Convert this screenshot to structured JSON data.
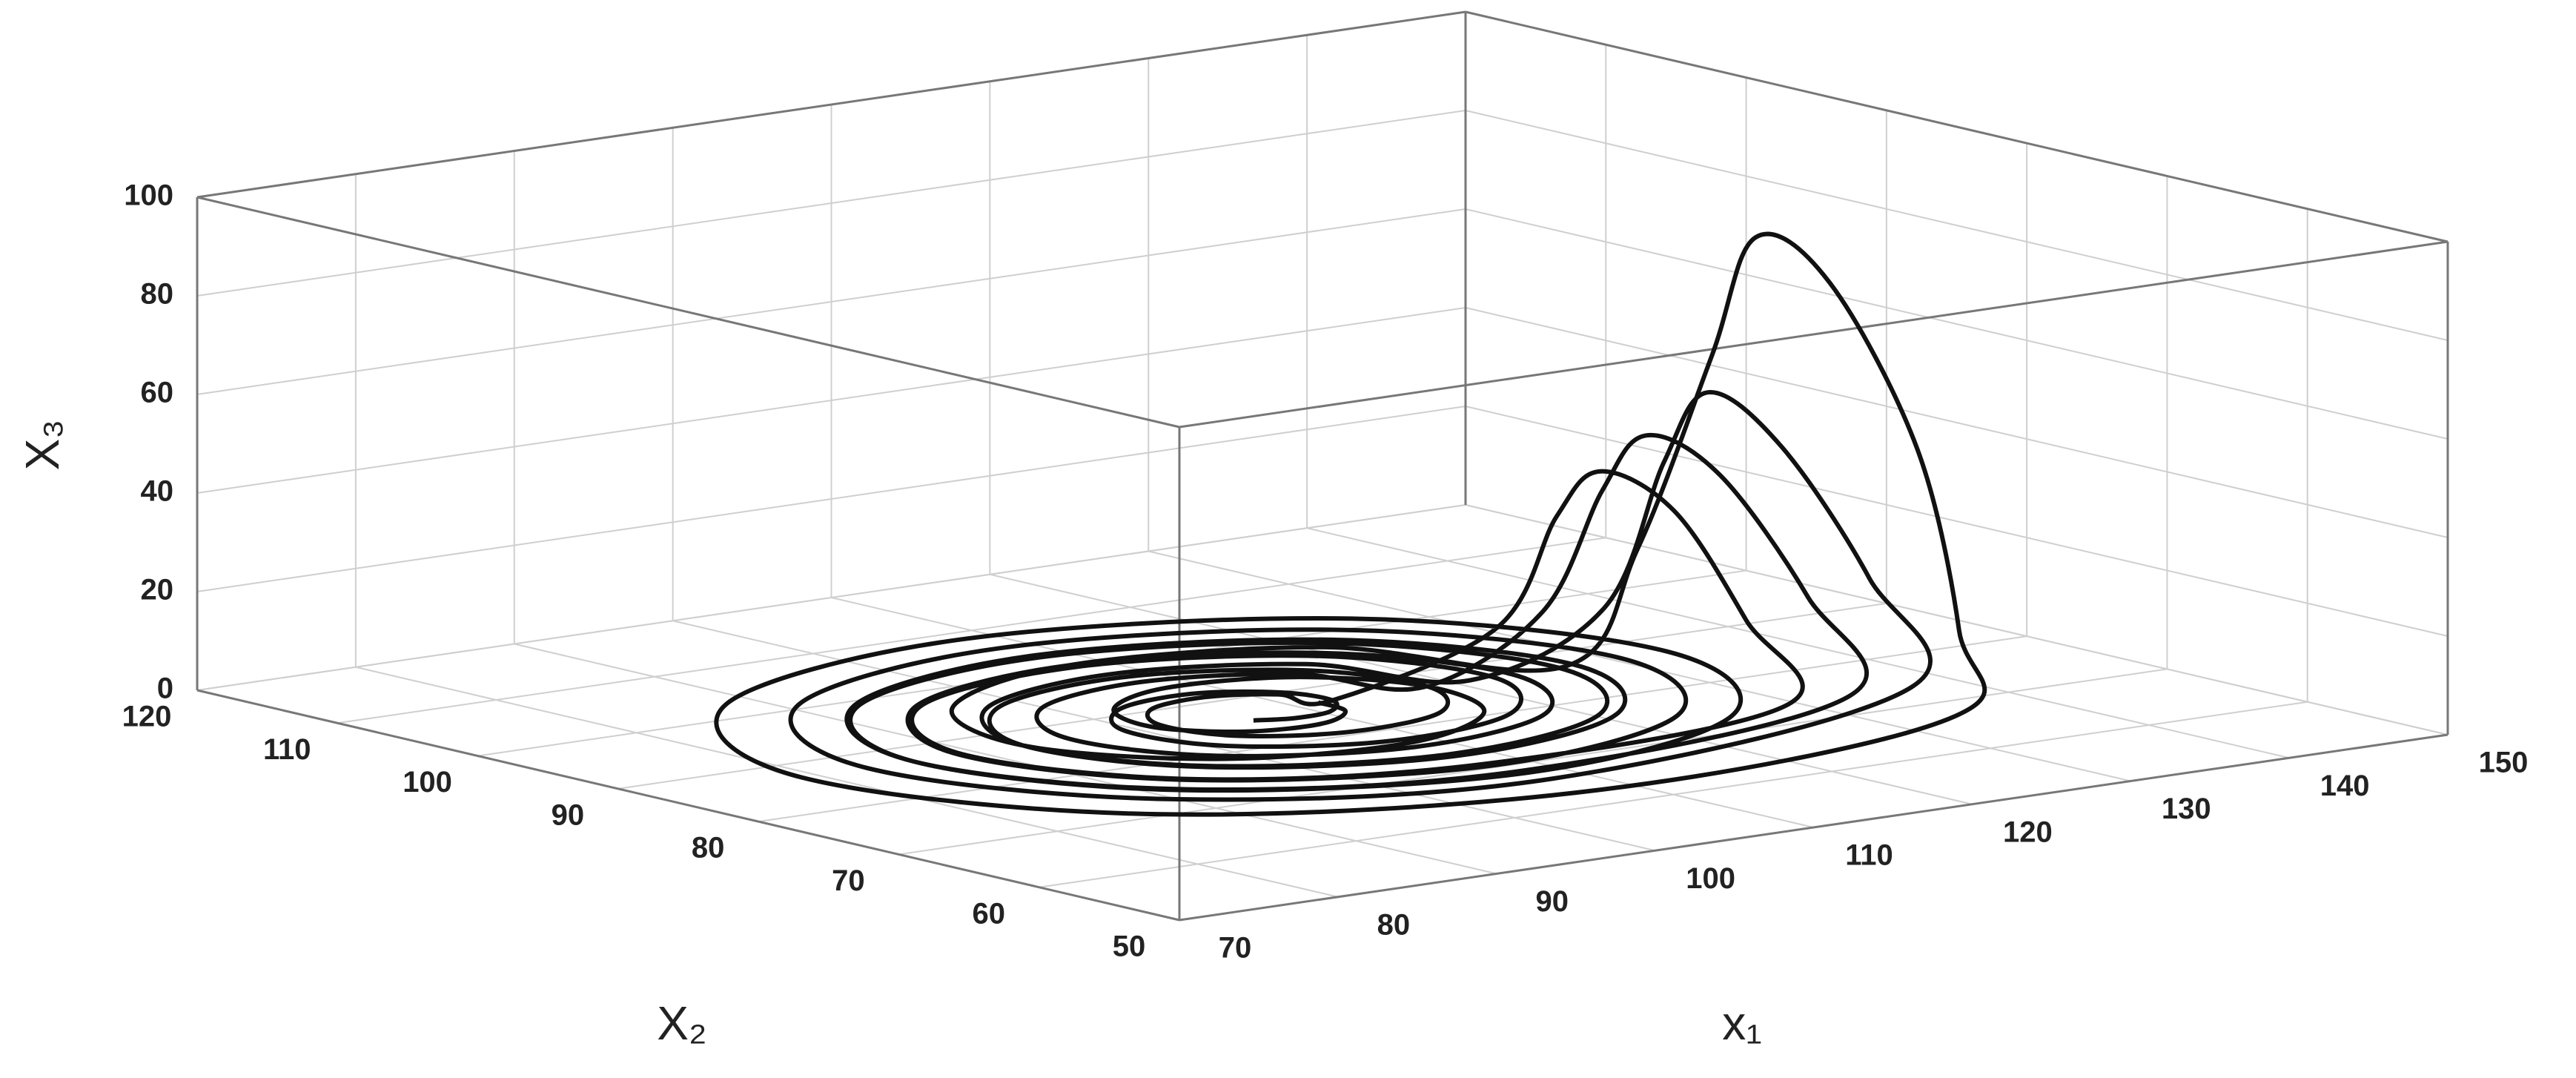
{
  "chart_data": {
    "type": "line3d",
    "xlabel": "x₁",
    "ylabel": "X₂",
    "zlabel": "X₃",
    "x": [
      111.5,
      111.1,
      108,
      103.7,
      101.0,
      102.5,
      108,
      114.8,
      118.4,
      116.2,
      108,
      98.2,
      92.9,
      96.5,
      108,
      120.9,
      127.1,
      129,
      131,
      132,
      134,
      136,
      136,
      134,
      108,
      86.9,
      79.0,
      88.1,
      108,
      126.7,
      133.5,
      125.4,
      108,
      91.8,
      86.0,
      93.0,
      108,
      121.7,
      126.6,
      120.5,
      108,
      96.7,
      92.9,
      97.8,
      108,
      117.4,
      121.1,
      126,
      128,
      129,
      131,
      133,
      133,
      108,
      90.0,
      83.1,
      90.8,
      108,
      124.4,
      130.6,
      123.4,
      108,
      93.9,
      88.9,
      95.1,
      108,
      119.7,
      123.7,
      118.5,
      108,
      98.8,
      95.8,
      99.8,
      108,
      115.4,
      118.2,
      123,
      125,
      126,
      128,
      130,
      130,
      108,
      92.0,
      86.0,
      92.8,
      108,
      122.4,
      127.7,
      121.1,
      108,
      96.5,
      92.9,
      98.2,
      108,
      116.2,
      118.4,
      114.6,
      108,
      102.9,
      101.6,
      103.9,
      108,
      111.3,
      112.4,
      121,
      123,
      124,
      126,
      127,
      127,
      108,
      94.1,
      89.1,
      95.3,
      108,
      119.1,
      122.5,
      117.2,
      108,
      100.8,
      99.3,
      102.7,
      108,
      111.7,
      112.4,
      110.5,
      108,
      106.0
    ],
    "y": [
      87,
      84.6,
      82.9,
      83.6,
      87,
      91.4,
      93.9,
      92.4,
      87,
      80.5,
      76.9,
      79.2,
      87,
      96.1,
      100.8,
      97.2,
      87,
      84,
      81,
      79,
      76,
      72,
      69,
      67,
      62.9,
      70.3,
      87,
      102.8,
      108.6,
      101.8,
      87,
      73.2,
      68.1,
      74.2,
      87,
      98.9,
      103.1,
      97.9,
      87,
      77.1,
      73.7,
      78.1,
      87,
      95.1,
      98.0,
      94.5,
      87,
      83,
      81,
      79,
      76,
      72,
      69,
      66.3,
      72.7,
      87,
      100.7,
      105.9,
      100.0,
      87,
      74.8,
      70.4,
      75.8,
      87,
      97.2,
      100.8,
      96.3,
      87,
      78.7,
      76.0,
      79.7,
      87,
      93.5,
      95.7,
      92.9,
      87,
      84,
      82,
      80,
      77,
      73,
      70,
      68.6,
      74.3,
      87,
      99.0,
      103.6,
      98.4,
      87,
      76.6,
      73.2,
      77.9,
      87,
      94.8,
      97.1,
      93.5,
      87,
      81.8,
      80.6,
      82.9,
      87,
      90.3,
      91.1,
      89.6,
      87,
      85,
      83,
      81,
      78,
      74,
      71,
      70.9,
      75.9,
      87,
      97.1,
      100.3,
      95.8,
      87,
      79.7,
      77.8,
      81.3,
      87,
      91.2,
      92.1,
      89.9,
      87,
      85.0,
      84.7,
      85.4
    ],
    "z": [
      0,
      0,
      0,
      0,
      0,
      0,
      0,
      0,
      0,
      0,
      0,
      0,
      0,
      0,
      0,
      0,
      0,
      25,
      65,
      90,
      82,
      50,
      15,
      0,
      0,
      0,
      0,
      0,
      0,
      0,
      0,
      0,
      0,
      0,
      0,
      0,
      0,
      0,
      0,
      0,
      0,
      0,
      0,
      0,
      0,
      0,
      0,
      15,
      45,
      60,
      50,
      25,
      5,
      0,
      0,
      0,
      0,
      0,
      0,
      0,
      0,
      0,
      0,
      0,
      0,
      0,
      0,
      0,
      0,
      0,
      0,
      0,
      0,
      0,
      0,
      0,
      15,
      40,
      52,
      45,
      22,
      4,
      0,
      0,
      0,
      0,
      0,
      0,
      0,
      0,
      0,
      0,
      0,
      0,
      0,
      0,
      0,
      0,
      0,
      0,
      0,
      0,
      0,
      0,
      0,
      12,
      35,
      45,
      38,
      18,
      3,
      0,
      0,
      0,
      0,
      0,
      0,
      0,
      0,
      0,
      0,
      0,
      0,
      0,
      0,
      0,
      0,
      0,
      0
    ],
    "color": "#111111",
    "xlim": [
      70,
      150
    ],
    "ylim": [
      50,
      120
    ],
    "zlim": [
      0,
      100
    ],
    "xticks": [
      70,
      80,
      90,
      100,
      110,
      120,
      130,
      140,
      150
    ],
    "yticks": [
      50,
      60,
      70,
      80,
      90,
      100,
      110,
      120
    ],
    "zticks": [
      0,
      20,
      40,
      60,
      80,
      100
    ],
    "grid": true
  }
}
